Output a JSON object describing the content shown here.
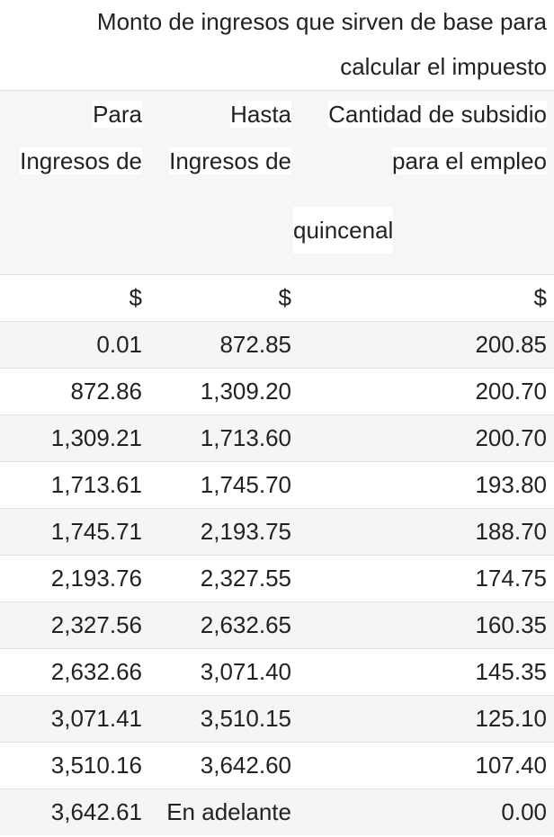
{
  "title": {
    "line1": "Monto de ingresos que sirven de base para",
    "line2": "calcular el impuesto"
  },
  "headers": {
    "col1_line1": "Para",
    "col1_line2": "Ingresos de",
    "col2_line1": "Hasta",
    "col2_line2": "Ingresos de",
    "col3_line1": "Cantidad de subsidio",
    "col3_line2": "para el empleo",
    "col3_line3": "quincenal"
  },
  "currency": {
    "col1": "$",
    "col2": "$",
    "col3": "$"
  },
  "rows": [
    {
      "desde": "0.01",
      "hasta": "872.85",
      "subsidio": "200.85"
    },
    {
      "desde": "872.86",
      "hasta": "1,309.20",
      "subsidio": "200.70"
    },
    {
      "desde": "1,309.21",
      "hasta": "1,713.60",
      "subsidio": "200.70"
    },
    {
      "desde": "1,713.61",
      "hasta": "1,745.70",
      "subsidio": "193.80"
    },
    {
      "desde": "1,745.71",
      "hasta": "2,193.75",
      "subsidio": "188.70"
    },
    {
      "desde": "2,193.76",
      "hasta": "2,327.55",
      "subsidio": "174.75"
    },
    {
      "desde": "2,327.56",
      "hasta": "2,632.65",
      "subsidio": "160.35"
    },
    {
      "desde": "2,632.66",
      "hasta": "3,071.40",
      "subsidio": "145.35"
    },
    {
      "desde": "3,071.41",
      "hasta": "3,510.15",
      "subsidio": "125.10"
    },
    {
      "desde": "3,510.16",
      "hasta": "3,642.60",
      "subsidio": "107.40"
    },
    {
      "desde": "3,642.61",
      "hasta": "En adelante",
      "subsidio": "0.00"
    }
  ]
}
